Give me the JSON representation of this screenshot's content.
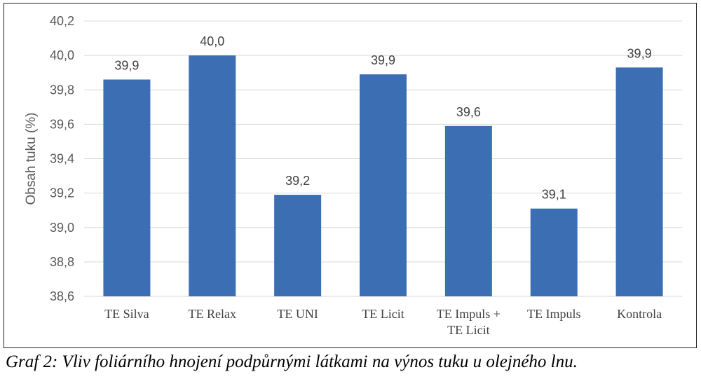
{
  "chart_data": {
    "type": "bar",
    "categories": [
      [
        "TE Silva"
      ],
      [
        "TE Relax"
      ],
      [
        "TE UNI"
      ],
      [
        "TE Licit"
      ],
      [
        "TE Impuls +",
        "TE Licit"
      ],
      [
        "TE Impuls"
      ],
      [
        "Kontrola"
      ]
    ],
    "values": [
      39.86,
      40.0,
      39.19,
      39.89,
      39.59,
      39.11,
      39.93
    ],
    "data_labels": [
      "39,9",
      "40,0",
      "39,2",
      "39,9",
      "39,6",
      "39,1",
      "39,9"
    ],
    "y_ticks": [
      "38,6",
      "38,8",
      "39,0",
      "39,2",
      "39,4",
      "39,6",
      "39,8",
      "40,0",
      "40,2"
    ],
    "ylim": [
      38.6,
      40.2
    ],
    "ylabel": "Obsah tuku (%)",
    "xlabel": "",
    "grid": true,
    "bar_color": "#3c6eb4",
    "grid_color": "#d9d9d9"
  },
  "caption": "Graf 2: Vliv foliárního hnojení podpůrnými látkami na výnos tuku u olejného lnu."
}
